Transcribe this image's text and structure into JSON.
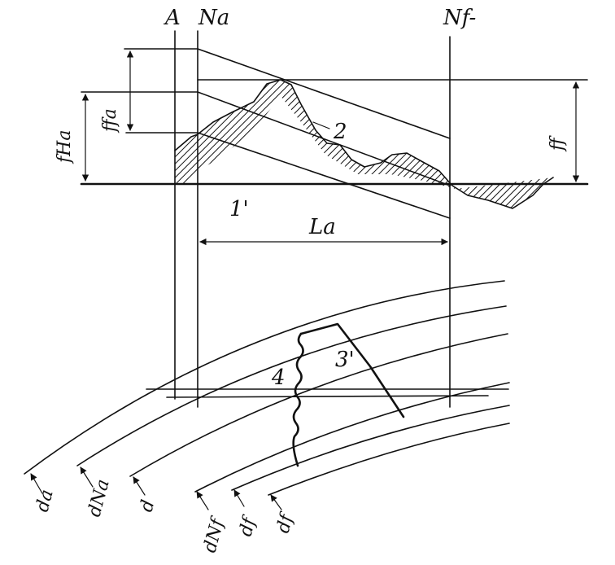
{
  "labels": {
    "A": "A",
    "Na": "Na",
    "Nf": "Nf-",
    "fHa": "fHa",
    "ffa": "ffa",
    "ff": "ff",
    "La": "La",
    "one_prime": "1'",
    "two": "2",
    "three": "3'",
    "four": "4",
    "da": "da",
    "dNa": "dNa",
    "d": "d",
    "dNf": "dNf",
    "df_left": "df",
    "df_right": "df"
  },
  "colors": {
    "ink": "#111111",
    "hatch": "#111111",
    "background": "#ffffff"
  }
}
